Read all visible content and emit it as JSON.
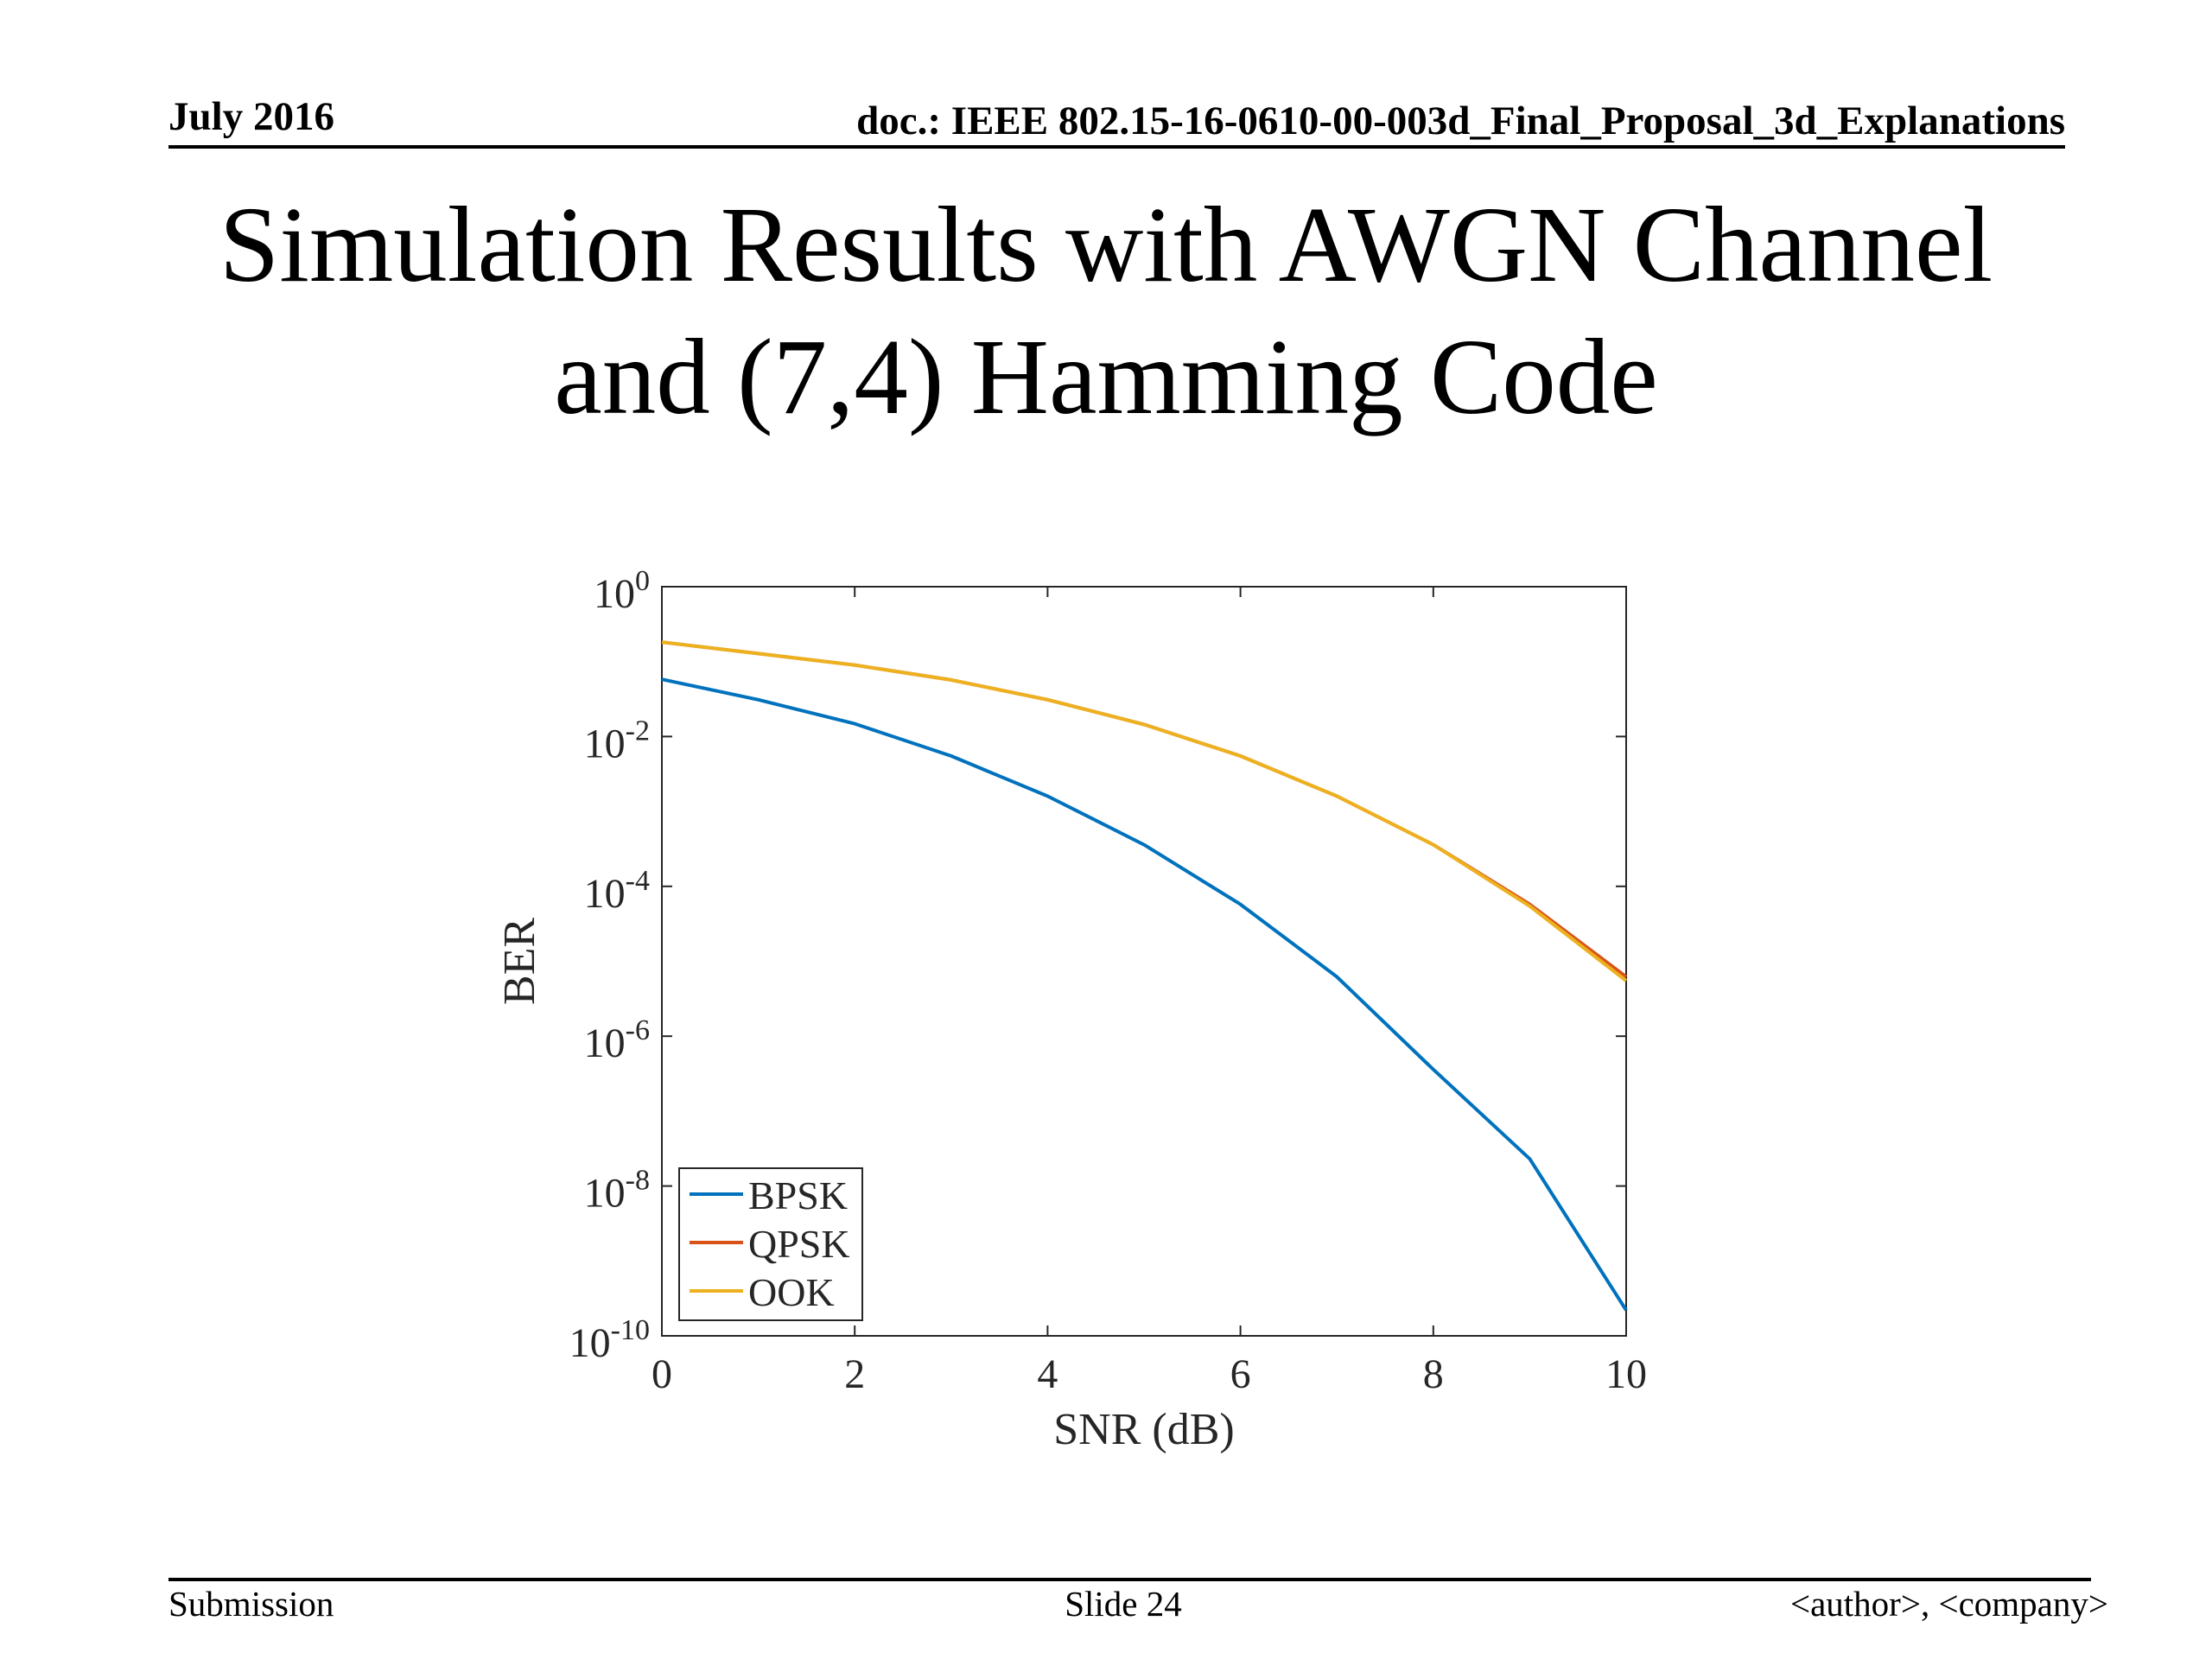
{
  "header": {
    "date": "July 2016",
    "doc": "doc.: IEEE 802.15-16-0610-00-003d_Final_Proposal_3d_Explanations"
  },
  "slide": {
    "title_line1": "Simulation Results with AWGN Channel",
    "title_line2": "and (7,4) Hamming Code"
  },
  "footer": {
    "left": "Submission",
    "center": "Slide 24",
    "right": "<author>, <company>"
  },
  "colors": {
    "BPSK": "#0072BD",
    "QPSK": "#D95319",
    "OOK": "#EDB120",
    "axis": "#262626"
  },
  "chart_data": {
    "type": "line",
    "title": "",
    "xlabel": "SNR (dB)",
    "ylabel": "BER",
    "xlim": [
      0,
      10
    ],
    "ylim": [
      1e-10,
      1
    ],
    "yscale": "log",
    "xticks": [
      "0",
      "2",
      "4",
      "6",
      "8",
      "10"
    ],
    "yticks": [
      {
        "base": "10",
        "exp": "0"
      },
      {
        "base": "10",
        "exp": "-2"
      },
      {
        "base": "10",
        "exp": "-4"
      },
      {
        "base": "10",
        "exp": "-6"
      },
      {
        "base": "10",
        "exp": "-8"
      },
      {
        "base": "10",
        "exp": "-10"
      }
    ],
    "legend_position": "bottom-left",
    "x": [
      0,
      1,
      2,
      3,
      4,
      5,
      6,
      7,
      8,
      9,
      10
    ],
    "series": [
      {
        "name": "BPSK",
        "values": [
          0.058,
          0.031,
          0.0148,
          0.0055,
          0.0016,
          0.00036,
          5.75e-05,
          6.2e-06,
          3.6e-07,
          2.3e-08,
          2.2e-10
        ]
      },
      {
        "name": "QPSK",
        "values": [
          0.182,
          0.128,
          0.09,
          0.057,
          0.031,
          0.0145,
          0.0055,
          0.0016,
          0.00036,
          5.75e-05,
          6.2e-06
        ]
      },
      {
        "name": "OOK",
        "values": [
          0.182,
          0.128,
          0.09,
          0.057,
          0.031,
          0.0145,
          0.0055,
          0.0016,
          0.00036,
          5.45e-05,
          5.5e-06
        ]
      }
    ]
  }
}
